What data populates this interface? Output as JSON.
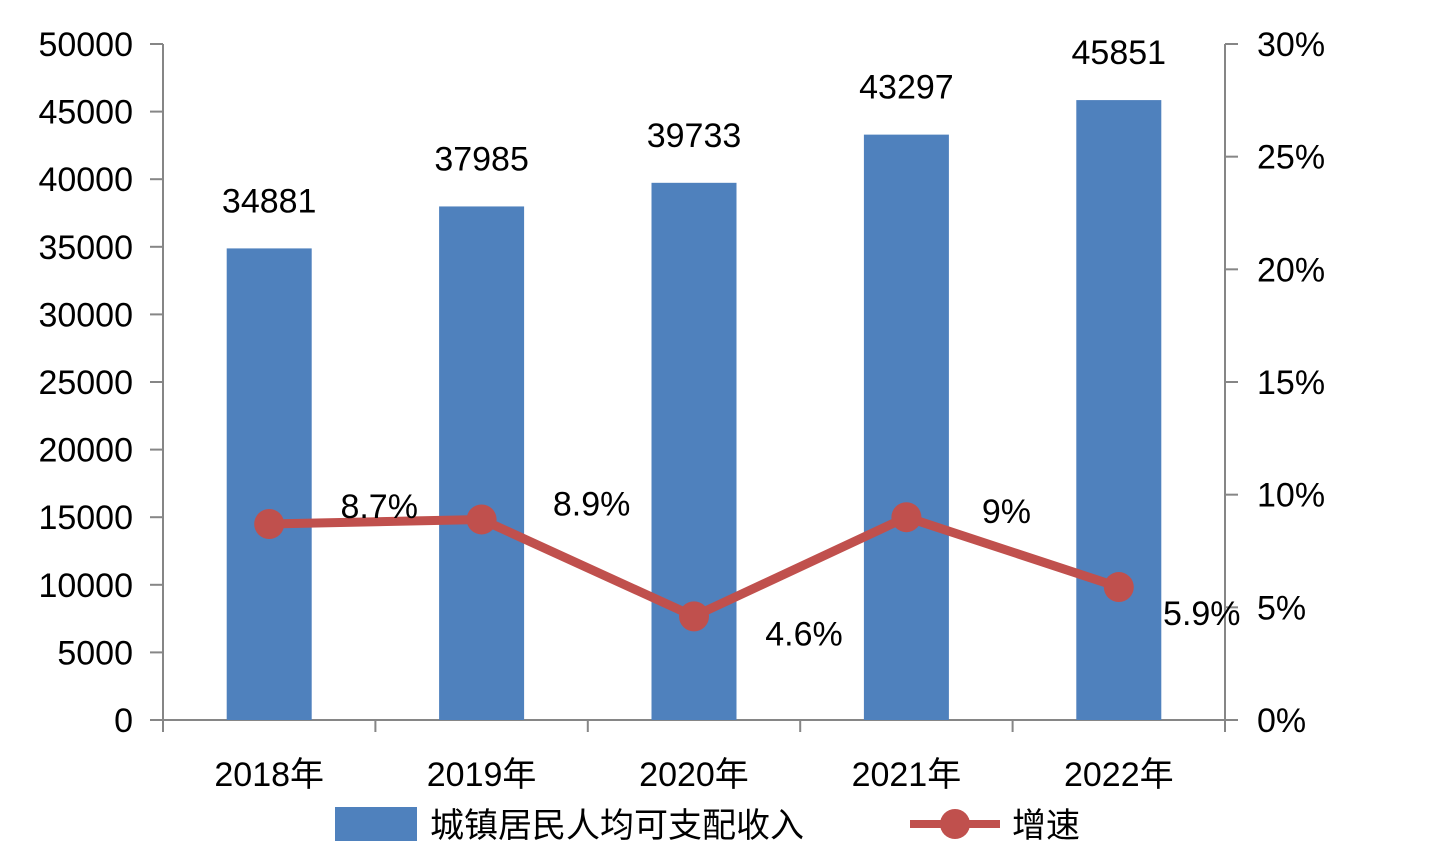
{
  "chart_data": {
    "type": "bar",
    "categories": [
      "2018年",
      "2019年",
      "2020年",
      "2021年",
      "2022年"
    ],
    "series": [
      {
        "name": "城镇居民人均可支配收入",
        "type": "bar",
        "axis": "left",
        "color": "#4F81BD",
        "values": [
          34881,
          37985,
          39733,
          43297,
          45851
        ],
        "labels": [
          "34881",
          "37985",
          "39733",
          "43297",
          "45851"
        ]
      },
      {
        "name": "增速",
        "type": "line",
        "axis": "right",
        "color": "#C0504D",
        "values": [
          8.7,
          8.9,
          4.6,
          9.0,
          5.9
        ],
        "labels": [
          "8.7%",
          "8.9%",
          "4.6%",
          "9%",
          "5.9%"
        ]
      }
    ],
    "y_left": {
      "min": 0,
      "max": 50000,
      "step": 5000,
      "ticks": [
        "0",
        "5000",
        "10000",
        "15000",
        "20000",
        "25000",
        "30000",
        "35000",
        "40000",
        "45000",
        "50000"
      ]
    },
    "y_right": {
      "min": 0,
      "max": 30,
      "step": 5,
      "ticks": [
        "0%",
        "5%",
        "10%",
        "15%",
        "20%",
        "25%",
        "30%"
      ]
    },
    "grid": false,
    "legend_position": "bottom"
  }
}
